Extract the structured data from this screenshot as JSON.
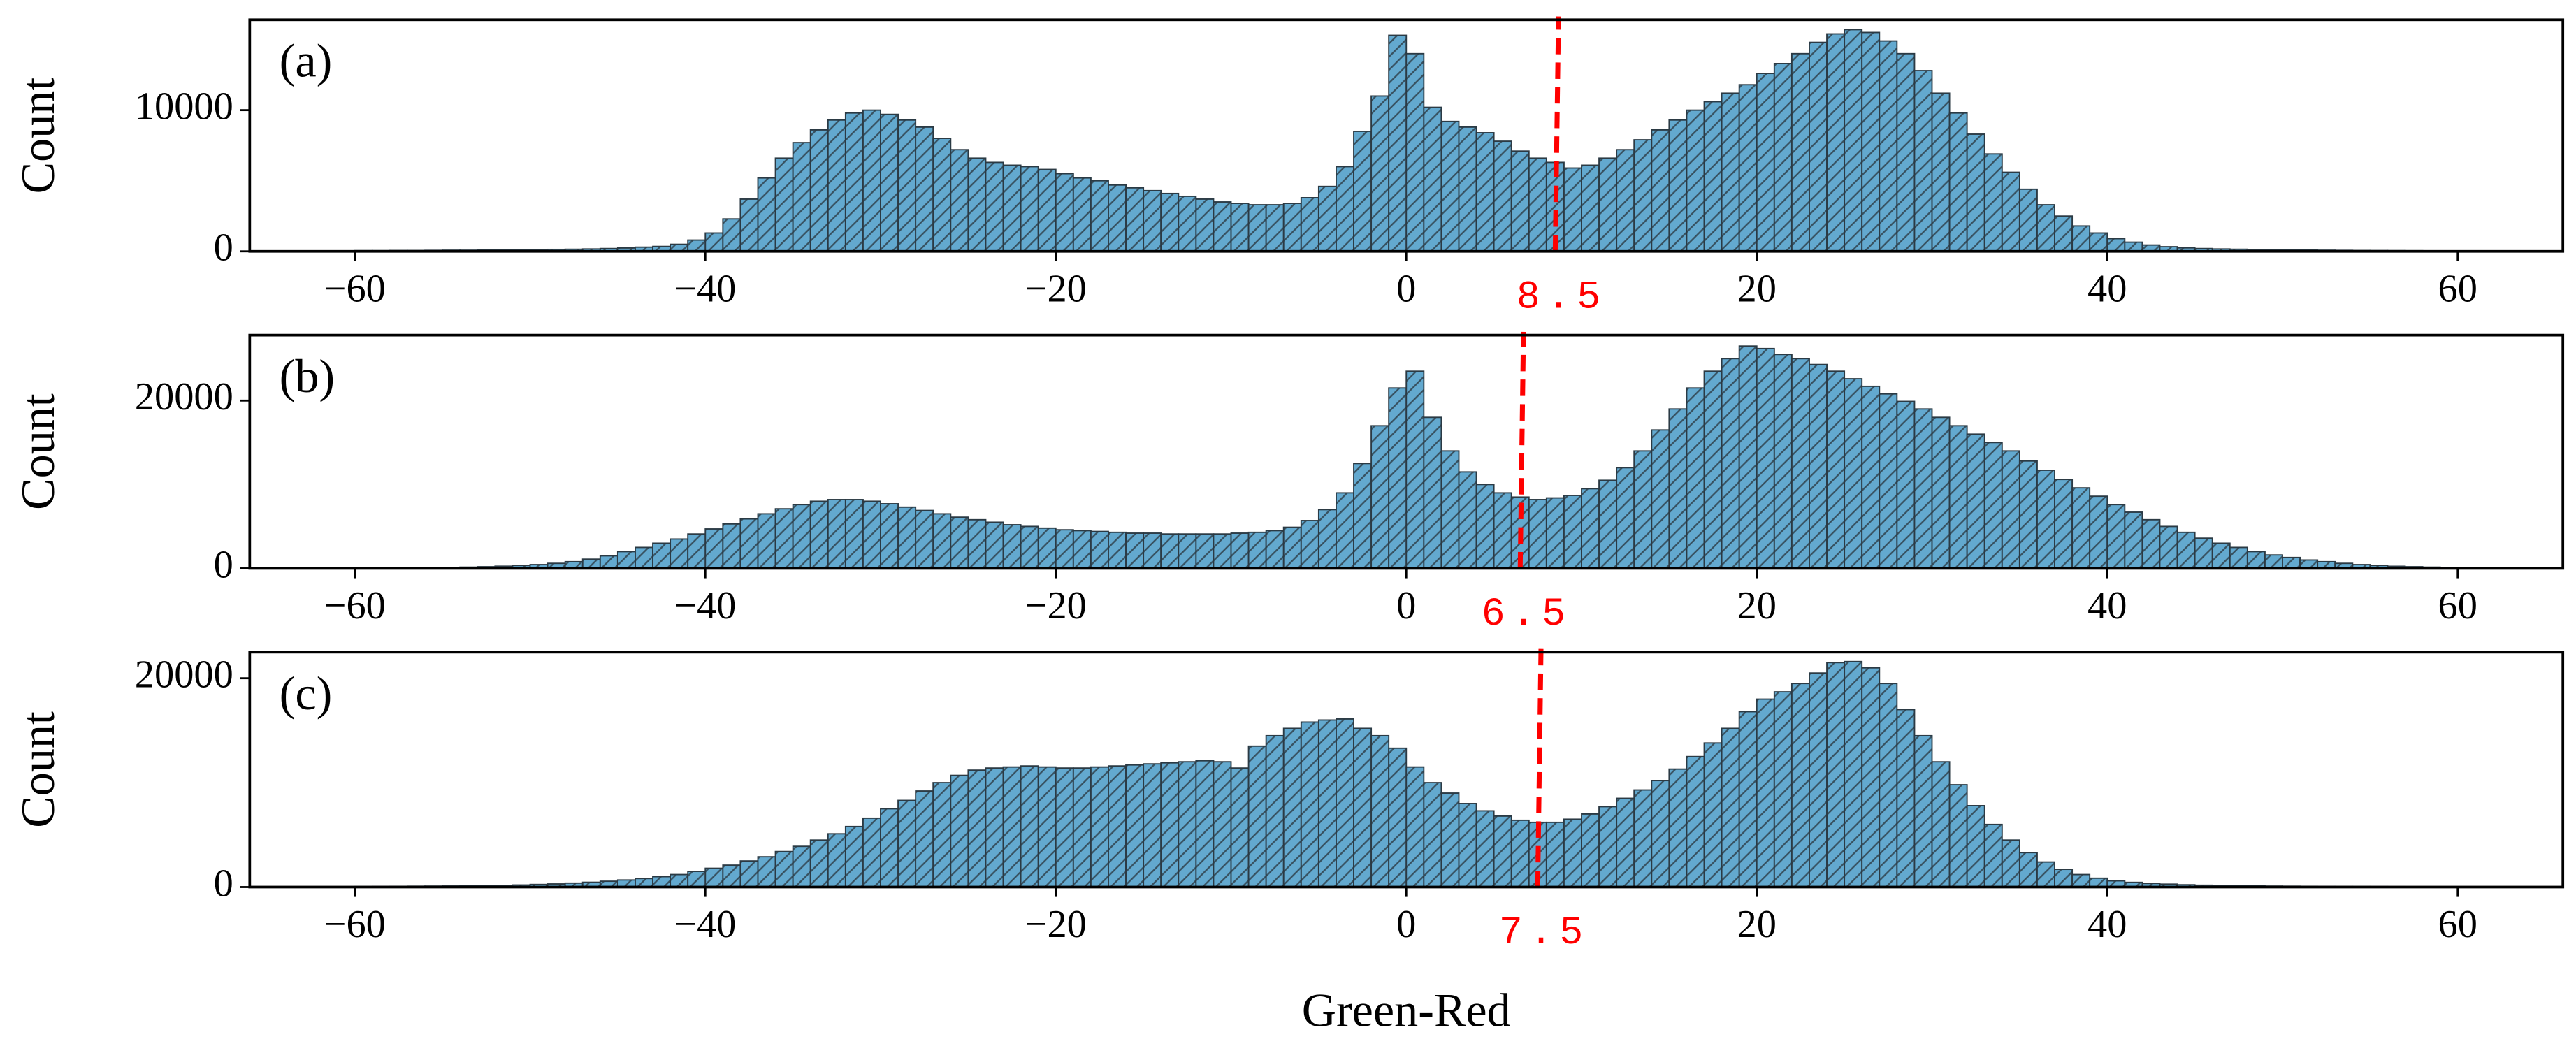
{
  "chart_data": [
    {
      "type": "histogram",
      "title": "(a)",
      "ylabel": "Count",
      "color": "#63a9cf",
      "edgecolor": "#2b3a44",
      "threshold": 8.5,
      "threshold_color": "#ff0000",
      "bins": [
        -60,
        -59,
        -58,
        -57,
        -56,
        -55,
        -54,
        -53,
        -52,
        -51,
        -50,
        -49,
        -48,
        -47,
        -46,
        -45,
        -44,
        -43,
        -42,
        -41,
        -40,
        -39,
        -38,
        -37,
        -36,
        -35,
        -34,
        -33,
        -32,
        -31,
        -30,
        -29,
        -28,
        -27,
        -26,
        -25,
        -24,
        -23,
        -22,
        -21,
        -20,
        -19,
        -18,
        -17,
        -16,
        -15,
        -14,
        -13,
        -12,
        -11,
        -10,
        -9,
        -8,
        -7,
        -6,
        -5,
        -4,
        -3,
        -2,
        -1,
        0,
        1,
        2,
        3,
        4,
        5,
        6,
        7,
        8,
        9,
        10,
        11,
        12,
        13,
        14,
        15,
        16,
        17,
        18,
        19,
        20,
        21,
        22,
        23,
        24,
        25,
        26,
        27,
        28,
        29,
        30,
        31,
        32,
        33,
        34,
        35,
        36,
        37,
        38,
        39,
        40,
        41,
        42,
        43,
        44,
        45,
        46,
        47,
        48,
        49,
        50,
        51,
        52,
        53,
        54,
        55,
        56,
        57,
        58,
        59,
        60
      ],
      "values": [
        50,
        50,
        60,
        60,
        70,
        80,
        80,
        90,
        100,
        110,
        120,
        140,
        150,
        170,
        200,
        240,
        300,
        350,
        500,
        800,
        1300,
        2300,
        3700,
        5200,
        6600,
        7700,
        8600,
        9300,
        9800,
        10000,
        9700,
        9300,
        8800,
        8000,
        7200,
        6600,
        6300,
        6100,
        6000,
        5800,
        5500,
        5200,
        5000,
        4700,
        4500,
        4300,
        4100,
        3900,
        3700,
        3500,
        3400,
        3300,
        3300,
        3400,
        3800,
        4600,
        6000,
        8500,
        11000,
        15300,
        14000,
        10200,
        9200,
        8800,
        8400,
        7800,
        7100,
        6600,
        6300,
        5900,
        6100,
        6600,
        7200,
        7900,
        8600,
        9300,
        10000,
        10600,
        11200,
        11800,
        12600,
        13300,
        14000,
        14800,
        15400,
        15700,
        15500,
        14900,
        14000,
        12800,
        11200,
        9800,
        8300,
        6900,
        5600,
        4400,
        3300,
        2500,
        1800,
        1300,
        900,
        650,
        450,
        330,
        250,
        200,
        170,
        150,
        130,
        110,
        100,
        90,
        80,
        70,
        60,
        55,
        50,
        45,
        40,
        35
      ],
      "xlim": [
        -66,
        66
      ],
      "ylim": [
        0,
        16400
      ],
      "xticks": [
        {
          "value": -60,
          "label": "−60"
        },
        {
          "value": -40,
          "label": "−40"
        },
        {
          "value": -20,
          "label": "−20"
        },
        0,
        20,
        40,
        60
      ],
      "yticks": [
        0,
        10000
      ]
    },
    {
      "type": "histogram",
      "title": "(b)",
      "ylabel": "Count",
      "color": "#63a9cf",
      "edgecolor": "#2b3a44",
      "threshold": 6.5,
      "threshold_color": "#ff0000",
      "bins": [
        -60,
        -59,
        -58,
        -57,
        -56,
        -55,
        -54,
        -53,
        -52,
        -51,
        -50,
        -49,
        -48,
        -47,
        -46,
        -45,
        -44,
        -43,
        -42,
        -41,
        -40,
        -39,
        -38,
        -37,
        -36,
        -35,
        -34,
        -33,
        -32,
        -31,
        -30,
        -29,
        -28,
        -27,
        -26,
        -25,
        -24,
        -23,
        -22,
        -21,
        -20,
        -19,
        -18,
        -17,
        -16,
        -15,
        -14,
        -13,
        -12,
        -11,
        -10,
        -9,
        -8,
        -7,
        -6,
        -5,
        -4,
        -3,
        -2,
        -1,
        0,
        1,
        2,
        3,
        4,
        5,
        6,
        7,
        8,
        9,
        10,
        11,
        12,
        13,
        14,
        15,
        16,
        17,
        18,
        19,
        20,
        21,
        22,
        23,
        24,
        25,
        26,
        27,
        28,
        29,
        30,
        31,
        32,
        33,
        34,
        35,
        36,
        37,
        38,
        39,
        40,
        41,
        42,
        43,
        44,
        45,
        46,
        47,
        48,
        49,
        50,
        51,
        52,
        53,
        54,
        55,
        56,
        57,
        58,
        59,
        60
      ],
      "values": [
        50,
        60,
        70,
        80,
        100,
        120,
        150,
        200,
        260,
        350,
        450,
        600,
        800,
        1100,
        1500,
        2000,
        2500,
        3000,
        3500,
        4100,
        4700,
        5300,
        5900,
        6500,
        7100,
        7600,
        8000,
        8200,
        8200,
        8000,
        7700,
        7300,
        6900,
        6500,
        6100,
        5800,
        5500,
        5200,
        5000,
        4800,
        4600,
        4500,
        4400,
        4300,
        4200,
        4200,
        4100,
        4100,
        4100,
        4100,
        4200,
        4300,
        4500,
        4900,
        5700,
        7000,
        9000,
        12500,
        17000,
        21500,
        23500,
        18000,
        14000,
        11500,
        10000,
        9000,
        8500,
        8200,
        8400,
        8700,
        9500,
        10500,
        12000,
        14000,
        16500,
        19000,
        21500,
        23500,
        25000,
        26500,
        26200,
        25500,
        25000,
        24300,
        23500,
        22600,
        21700,
        20800,
        19900,
        19000,
        18000,
        17000,
        16000,
        15000,
        14000,
        12800,
        11700,
        10600,
        9600,
        8600,
        7600,
        6700,
        5800,
        5000,
        4300,
        3600,
        3000,
        2500,
        2000,
        1600,
        1300,
        1000,
        800,
        600,
        450,
        350,
        250,
        200,
        150,
        100
      ],
      "xlim": [
        -66,
        66
      ],
      "ylim": [
        0,
        27800
      ],
      "xticks": [
        {
          "value": -60,
          "label": "−60"
        },
        {
          "value": -40,
          "label": "−40"
        },
        {
          "value": -20,
          "label": "−20"
        },
        0,
        20,
        40,
        60
      ],
      "yticks": [
        0,
        20000
      ]
    },
    {
      "type": "histogram",
      "title": "(c)",
      "ylabel": "Count",
      "xlabel": "Green-Red",
      "color": "#63a9cf",
      "edgecolor": "#2b3a44",
      "threshold": 7.5,
      "threshold_color": "#ff0000",
      "bins": [
        -60,
        -59,
        -58,
        -57,
        -56,
        -55,
        -54,
        -53,
        -52,
        -51,
        -50,
        -49,
        -48,
        -47,
        -46,
        -45,
        -44,
        -43,
        -42,
        -41,
        -40,
        -39,
        -38,
        -37,
        -36,
        -35,
        -34,
        -33,
        -32,
        -31,
        -30,
        -29,
        -28,
        -27,
        -26,
        -25,
        -24,
        -23,
        -22,
        -21,
        -20,
        -19,
        -18,
        -17,
        -16,
        -15,
        -14,
        -13,
        -12,
        -11,
        -10,
        -9,
        -8,
        -7,
        -6,
        -5,
        -4,
        -3,
        -2,
        -1,
        0,
        1,
        2,
        3,
        4,
        5,
        6,
        7,
        8,
        9,
        10,
        11,
        12,
        13,
        14,
        15,
        16,
        17,
        18,
        19,
        20,
        21,
        22,
        23,
        24,
        25,
        26,
        27,
        28,
        29,
        30,
        31,
        32,
        33,
        34,
        35,
        36,
        37,
        38,
        39,
        40,
        41,
        42,
        43,
        44,
        45,
        46,
        47,
        48,
        49,
        50,
        51,
        52,
        53,
        54,
        55,
        56,
        57,
        58,
        59,
        60
      ],
      "values": [
        50,
        60,
        70,
        80,
        90,
        100,
        120,
        140,
        160,
        200,
        250,
        300,
        380,
        460,
        560,
        680,
        820,
        1000,
        1200,
        1500,
        1800,
        2100,
        2500,
        2900,
        3400,
        3900,
        4500,
        5100,
        5800,
        6600,
        7500,
        8300,
        9200,
        10000,
        10700,
        11200,
        11400,
        11500,
        11600,
        11500,
        11400,
        11400,
        11500,
        11600,
        11700,
        11800,
        11900,
        12000,
        12100,
        12000,
        11400,
        13500,
        14500,
        15200,
        15800,
        16000,
        16100,
        15200,
        14500,
        13300,
        11500,
        10000,
        9000,
        8000,
        7300,
        6800,
        6400,
        6200,
        6200,
        6500,
        7000,
        7700,
        8500,
        9300,
        10200,
        11300,
        12500,
        13800,
        15200,
        16800,
        18000,
        18700,
        19500,
        20500,
        21500,
        21600,
        21000,
        19500,
        17000,
        14500,
        12000,
        9800,
        7800,
        6000,
        4500,
        3300,
        2400,
        1700,
        1200,
        850,
        600,
        450,
        350,
        280,
        220,
        180,
        150,
        130,
        110,
        90,
        80,
        70,
        60,
        55,
        50,
        45,
        40,
        35,
        30,
        25
      ],
      "xlim": [
        -66,
        66
      ],
      "ylim": [
        0,
        22500
      ],
      "xticks": [
        {
          "value": -60,
          "label": "−60"
        },
        {
          "value": -40,
          "label": "−40"
        },
        {
          "value": -20,
          "label": "−20"
        },
        0,
        20,
        40,
        60
      ],
      "yticks": [
        0,
        20000
      ]
    }
  ]
}
